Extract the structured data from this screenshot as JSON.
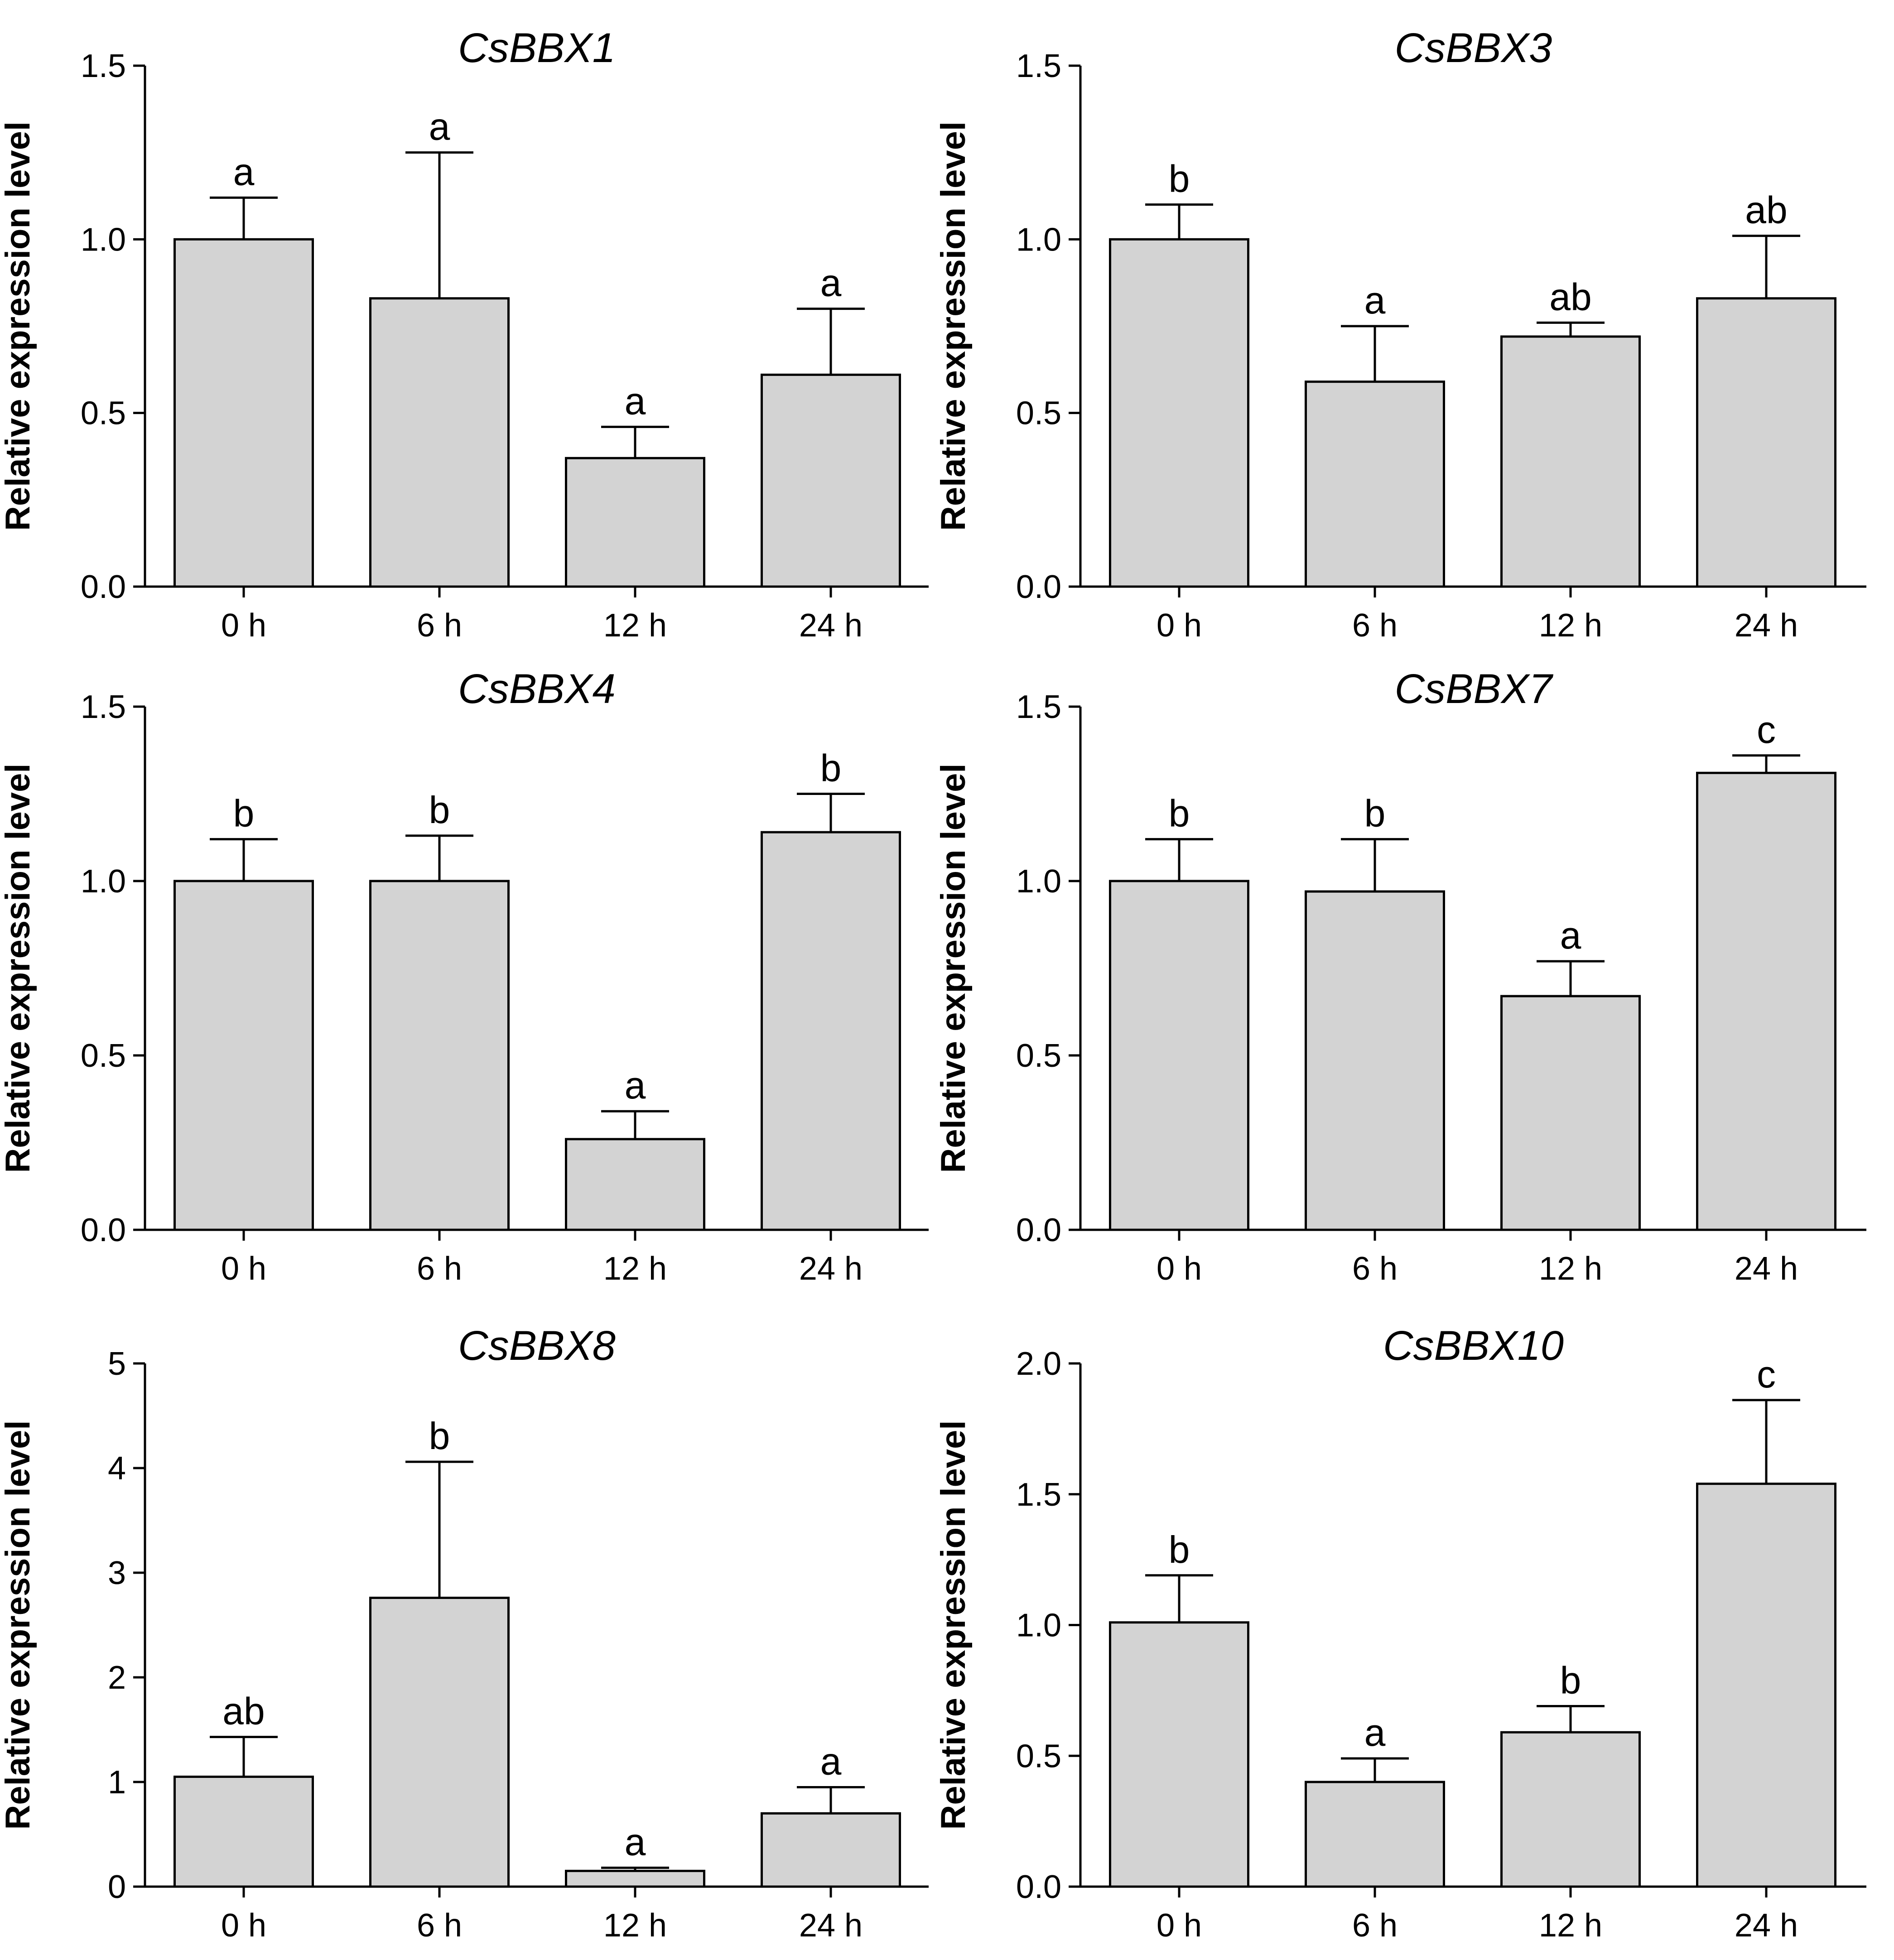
{
  "figure": {
    "panels_layout": "3 rows x 2 columns"
  },
  "chart_data": [
    {
      "type": "bar",
      "title": "CsBBX1",
      "xlabel": "",
      "ylabel": "Relative expression level",
      "categories": [
        "0 h",
        "6 h",
        "12 h",
        "24 h"
      ],
      "values": [
        1.0,
        0.83,
        0.37,
        0.61
      ],
      "errors": [
        0.12,
        0.42,
        0.09,
        0.19
      ],
      "letters": [
        "a",
        "a",
        "a",
        "a"
      ],
      "ylim": [
        0,
        1.5
      ],
      "yticks": [
        0.0,
        0.5,
        1.0,
        1.5
      ],
      "ytick_labels": [
        "0.0",
        "0.5",
        "1.0",
        "1.5"
      ],
      "bar_color": "#d3d3d3"
    },
    {
      "type": "bar",
      "title": "CsBBX3",
      "xlabel": "",
      "ylabel": "Relative expression level",
      "categories": [
        "0 h",
        "6 h",
        "12 h",
        "24 h"
      ],
      "values": [
        1.0,
        0.59,
        0.72,
        0.83
      ],
      "errors": [
        0.1,
        0.16,
        0.04,
        0.18
      ],
      "letters": [
        "b",
        "a",
        "ab",
        "ab"
      ],
      "ylim": [
        0,
        1.5
      ],
      "yticks": [
        0.0,
        0.5,
        1.0,
        1.5
      ],
      "ytick_labels": [
        "0.0",
        "0.5",
        "1.0",
        "1.5"
      ],
      "bar_color": "#d3d3d3"
    },
    {
      "type": "bar",
      "title": "CsBBX4",
      "xlabel": "",
      "ylabel": "Relative expression level",
      "categories": [
        "0 h",
        "6 h",
        "12 h",
        "24 h"
      ],
      "values": [
        1.0,
        1.0,
        0.26,
        1.14
      ],
      "errors": [
        0.12,
        0.13,
        0.08,
        0.11
      ],
      "letters": [
        "b",
        "b",
        "a",
        "b"
      ],
      "ylim": [
        0,
        1.5
      ],
      "yticks": [
        0.0,
        0.5,
        1.0,
        1.5
      ],
      "ytick_labels": [
        "0.0",
        "0.5",
        "1.0",
        "1.5"
      ],
      "bar_color": "#d3d3d3"
    },
    {
      "type": "bar",
      "title": "CsBBX7",
      "xlabel": "",
      "ylabel": "Relative expression level",
      "categories": [
        "0 h",
        "6 h",
        "12 h",
        "24 h"
      ],
      "values": [
        1.0,
        0.97,
        0.67,
        1.31
      ],
      "errors": [
        0.12,
        0.15,
        0.1,
        0.05
      ],
      "letters": [
        "b",
        "b",
        "a",
        "c"
      ],
      "ylim": [
        0,
        1.5
      ],
      "yticks": [
        0.0,
        0.5,
        1.0,
        1.5
      ],
      "ytick_labels": [
        "0.0",
        "0.5",
        "1.0",
        "1.5"
      ],
      "bar_color": "#d3d3d3"
    },
    {
      "type": "bar",
      "title": "CsBBX8",
      "xlabel": "",
      "ylabel": "Relative expression level",
      "categories": [
        "0 h",
        "6 h",
        "12 h",
        "24 h"
      ],
      "values": [
        1.05,
        2.76,
        0.15,
        0.7
      ],
      "errors": [
        0.38,
        1.3,
        0.03,
        0.25
      ],
      "letters": [
        "ab",
        "b",
        "a",
        "a"
      ],
      "ylim": [
        0,
        5
      ],
      "yticks": [
        0,
        1,
        2,
        3,
        4,
        5
      ],
      "ytick_labels": [
        "0",
        "1",
        "2",
        "3",
        "4",
        "5"
      ],
      "bar_color": "#d3d3d3"
    },
    {
      "type": "bar",
      "title": "CsBBX10",
      "xlabel": "",
      "ylabel": "Relative expression level",
      "categories": [
        "0 h",
        "6 h",
        "12 h",
        "24 h"
      ],
      "values": [
        1.01,
        0.4,
        0.59,
        1.54
      ],
      "errors": [
        0.18,
        0.09,
        0.1,
        0.32
      ],
      "letters": [
        "b",
        "a",
        "b",
        "c"
      ],
      "ylim": [
        0,
        2.0
      ],
      "yticks": [
        0.0,
        0.5,
        1.0,
        1.5,
        2.0
      ],
      "ytick_labels": [
        "0.0",
        "0.5",
        "1.0",
        "1.5",
        "2.0"
      ],
      "bar_color": "#d3d3d3"
    }
  ]
}
